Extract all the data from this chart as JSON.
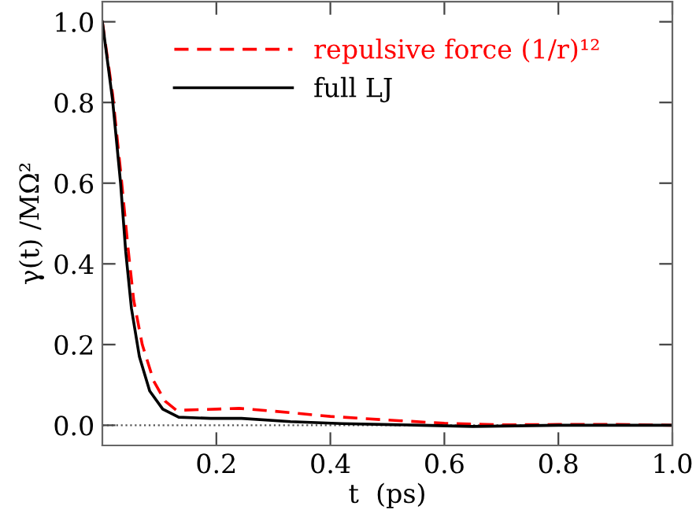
{
  "chart_data": {
    "type": "line",
    "xlabel": "t  (ps)",
    "ylabel": "γ(t) /MΩ²",
    "xlim": [
      0,
      1.0
    ],
    "ylim": [
      -0.05,
      1.05
    ],
    "xticks": [
      0.2,
      0.4,
      0.6,
      0.8,
      {
        "value": 1.0,
        "label": "1.0"
      }
    ],
    "yticks": [
      {
        "value": 0,
        "label": "0.0"
      },
      0.2,
      0.4,
      0.6,
      0.8,
      {
        "value": 1.0,
        "label": "1.0"
      }
    ],
    "legend": "top",
    "grid": false,
    "ref_lines": [
      {
        "axis": "y",
        "value": 0,
        "label": null,
        "color": "#555555",
        "line_style": "dotted"
      }
    ],
    "series": [
      {
        "name": "repulsive force (1/r)¹²",
        "color": "#ff0000",
        "line_style": "dashed",
        "x": [
          0,
          0.018,
          0.032,
          0.045,
          0.055,
          0.07,
          0.09,
          0.11,
          0.13,
          0.2,
          0.24,
          0.3,
          0.4,
          0.5,
          0.6,
          0.7,
          0.8,
          0.9,
          1.0
        ],
        "values": [
          1.0,
          0.82,
          0.63,
          0.44,
          0.31,
          0.2,
          0.11,
          0.06,
          0.037,
          0.04,
          0.042,
          0.035,
          0.022,
          0.013,
          0.005,
          0.001,
          0.002,
          0.002,
          0
        ]
      },
      {
        "name": "full LJ",
        "color": "#000000",
        "line_style": "solid",
        "x": [
          0,
          0.018,
          0.032,
          0.041,
          0.051,
          0.065,
          0.083,
          0.106,
          0.134,
          0.19,
          0.244,
          0.33,
          0.42,
          0.56,
          0.65,
          0.8,
          1.0
        ],
        "values": [
          1.0,
          0.805,
          0.6,
          0.43,
          0.29,
          0.17,
          0.085,
          0.04,
          0.02,
          0.017,
          0.017,
          0.009,
          0.004,
          0,
          -0.003,
          0,
          0
        ]
      }
    ]
  }
}
